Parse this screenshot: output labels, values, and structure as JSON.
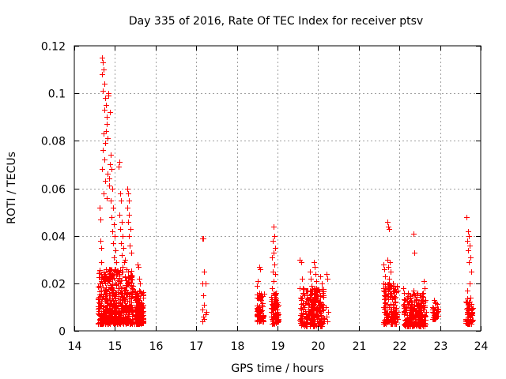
{
  "chart_data": {
    "type": "scatter",
    "title": "Day 335 of 2016, Rate Of TEC Index for receiver ptsv",
    "xlabel": "GPS time / hours",
    "ylabel": "ROTI / TECUs",
    "xlim": [
      14,
      24
    ],
    "ylim": [
      0,
      0.12
    ],
    "x_ticks": [
      "14",
      "15",
      "16",
      "17",
      "18",
      "19",
      "20",
      "21",
      "22",
      "23",
      "24"
    ],
    "y_ticks": [
      "0",
      "0.02",
      "0.04",
      "0.06",
      "0.08",
      "0.1",
      "0.12"
    ],
    "grid": true,
    "marker": "+",
    "color": "#ff0000",
    "series": [
      {
        "name": "ROTI",
        "points": [
          [
            14.62,
            0.052
          ],
          [
            14.64,
            0.047
          ],
          [
            14.65,
            0.038
          ],
          [
            14.66,
            0.035
          ],
          [
            14.67,
            0.029
          ],
          [
            14.62,
            0.025
          ],
          [
            14.64,
            0.02
          ],
          [
            14.66,
            0.017
          ],
          [
            14.68,
            0.115
          ],
          [
            14.7,
            0.113
          ],
          [
            14.72,
            0.11
          ],
          [
            14.69,
            0.108
          ],
          [
            14.73,
            0.104
          ],
          [
            14.71,
            0.101
          ],
          [
            14.75,
            0.098
          ],
          [
            14.77,
            0.095
          ],
          [
            14.74,
            0.093
          ],
          [
            14.79,
            0.09
          ],
          [
            14.8,
            0.087
          ],
          [
            14.78,
            0.084
          ],
          [
            14.72,
            0.083
          ],
          [
            14.82,
            0.081
          ],
          [
            14.76,
            0.079
          ],
          [
            14.7,
            0.076
          ],
          [
            14.74,
            0.072
          ],
          [
            14.68,
            0.068
          ],
          [
            14.82,
            0.066
          ],
          [
            14.75,
            0.063
          ],
          [
            14.85,
            0.061
          ],
          [
            14.72,
            0.058
          ],
          [
            14.8,
            0.056
          ],
          [
            14.84,
            0.1
          ],
          [
            14.83,
            0.099
          ],
          [
            14.88,
            0.092
          ],
          [
            14.9,
            0.074
          ],
          [
            14.88,
            0.07
          ],
          [
            14.92,
            0.068
          ],
          [
            14.86,
            0.064
          ],
          [
            14.94,
            0.06
          ],
          [
            14.9,
            0.055
          ],
          [
            14.96,
            0.052
          ],
          [
            14.92,
            0.048
          ],
          [
            14.98,
            0.045
          ],
          [
            14.94,
            0.042
          ],
          [
            15.0,
            0.04
          ],
          [
            14.96,
            0.037
          ],
          [
            15.02,
            0.034
          ],
          [
            14.98,
            0.031
          ],
          [
            15.04,
            0.029
          ],
          [
            15.0,
            0.026
          ],
          [
            15.06,
            0.024
          ],
          [
            15.1,
            0.071
          ],
          [
            15.08,
            0.069
          ],
          [
            15.12,
            0.058
          ],
          [
            15.14,
            0.055
          ],
          [
            15.1,
            0.049
          ],
          [
            15.16,
            0.046
          ],
          [
            15.12,
            0.043
          ],
          [
            15.18,
            0.04
          ],
          [
            15.14,
            0.037
          ],
          [
            15.2,
            0.035
          ],
          [
            15.16,
            0.032
          ],
          [
            15.22,
            0.029
          ],
          [
            15.18,
            0.027
          ],
          [
            15.3,
            0.06
          ],
          [
            15.32,
            0.058
          ],
          [
            15.34,
            0.055
          ],
          [
            15.3,
            0.052
          ],
          [
            15.35,
            0.049
          ],
          [
            15.32,
            0.046
          ],
          [
            15.38,
            0.043
          ],
          [
            15.34,
            0.04
          ],
          [
            15.36,
            0.036
          ],
          [
            15.4,
            0.033
          ],
          [
            15.25,
            0.03
          ],
          [
            15.28,
            0.026
          ],
          [
            15.38,
            0.022
          ],
          [
            15.55,
            0.028
          ],
          [
            15.58,
            0.027
          ],
          [
            15.6,
            0.022
          ],
          [
            15.62,
            0.02
          ],
          [
            15.65,
            0.016
          ],
          [
            15.57,
            0.013
          ],
          [
            15.62,
            0.01
          ],
          [
            15.66,
            0.006
          ],
          [
            15.55,
            0.005
          ],
          [
            15.6,
            0.008
          ],
          [
            15.64,
            0.012
          ],
          [
            17.15,
            0.039
          ],
          [
            17.18,
            0.039
          ],
          [
            17.2,
            0.025
          ],
          [
            17.16,
            0.02
          ],
          [
            17.22,
            0.02
          ],
          [
            17.18,
            0.015
          ],
          [
            17.2,
            0.011
          ],
          [
            17.16,
            0.009
          ],
          [
            17.22,
            0.007
          ],
          [
            17.18,
            0.006
          ],
          [
            17.2,
            0.005
          ],
          [
            17.16,
            0.004
          ],
          [
            17.24,
            0.008
          ],
          [
            18.5,
            0.019
          ],
          [
            18.55,
            0.027
          ],
          [
            18.58,
            0.026
          ],
          [
            18.52,
            0.021
          ],
          [
            18.56,
            0.016
          ],
          [
            18.6,
            0.013
          ],
          [
            18.54,
            0.01
          ],
          [
            18.58,
            0.008
          ],
          [
            18.52,
            0.006
          ],
          [
            18.6,
            0.005
          ],
          [
            18.56,
            0.004
          ],
          [
            18.62,
            0.011
          ],
          [
            18.5,
            0.009
          ],
          [
            18.9,
            0.044
          ],
          [
            18.92,
            0.04
          ],
          [
            18.88,
            0.038
          ],
          [
            18.94,
            0.035
          ],
          [
            18.9,
            0.033
          ],
          [
            18.86,
            0.031
          ],
          [
            18.92,
            0.028
          ],
          [
            18.88,
            0.025
          ],
          [
            18.94,
            0.024
          ],
          [
            18.9,
            0.021
          ],
          [
            18.86,
            0.018
          ],
          [
            18.92,
            0.015
          ],
          [
            18.96,
            0.013
          ],
          [
            18.88,
            0.011
          ],
          [
            18.94,
            0.009
          ],
          [
            18.9,
            0.007
          ],
          [
            18.86,
            0.005
          ],
          [
            18.96,
            0.004
          ],
          [
            19.0,
            0.006
          ],
          [
            18.84,
            0.008
          ],
          [
            19.55,
            0.03
          ],
          [
            19.58,
            0.029
          ],
          [
            19.6,
            0.022
          ],
          [
            19.62,
            0.018
          ],
          [
            19.56,
            0.014
          ],
          [
            19.64,
            0.011
          ],
          [
            19.58,
            0.009
          ],
          [
            19.62,
            0.007
          ],
          [
            19.56,
            0.005
          ],
          [
            19.66,
            0.004
          ],
          [
            19.7,
            0.017
          ],
          [
            19.72,
            0.014
          ],
          [
            19.74,
            0.012
          ],
          [
            19.76,
            0.009
          ],
          [
            19.78,
            0.007
          ],
          [
            19.74,
            0.005
          ],
          [
            19.7,
            0.003
          ],
          [
            19.8,
            0.025
          ],
          [
            19.82,
            0.022
          ],
          [
            19.84,
            0.019
          ],
          [
            19.86,
            0.016
          ],
          [
            19.8,
            0.013
          ],
          [
            19.88,
            0.011
          ],
          [
            19.84,
            0.008
          ],
          [
            19.9,
            0.029
          ],
          [
            19.92,
            0.027
          ],
          [
            19.94,
            0.024
          ],
          [
            19.96,
            0.021
          ],
          [
            19.92,
            0.018
          ],
          [
            19.98,
            0.015
          ],
          [
            19.94,
            0.012
          ],
          [
            19.9,
            0.009
          ],
          [
            19.96,
            0.006
          ],
          [
            19.92,
            0.004
          ],
          [
            20.0,
            0.003
          ],
          [
            20.05,
            0.023
          ],
          [
            20.08,
            0.02
          ],
          [
            20.1,
            0.016
          ],
          [
            20.05,
            0.012
          ],
          [
            20.12,
            0.009
          ],
          [
            20.2,
            0.024
          ],
          [
            20.22,
            0.022
          ],
          [
            20.18,
            0.01
          ],
          [
            20.24,
            0.008
          ],
          [
            20.2,
            0.006
          ],
          [
            20.22,
            0.004
          ],
          [
            21.6,
            0.028
          ],
          [
            21.62,
            0.026
          ],
          [
            21.64,
            0.023
          ],
          [
            21.6,
            0.02
          ],
          [
            21.66,
            0.018
          ],
          [
            21.62,
            0.015
          ],
          [
            21.64,
            0.012
          ],
          [
            21.6,
            0.01
          ],
          [
            21.66,
            0.007
          ],
          [
            21.7,
            0.046
          ],
          [
            21.72,
            0.044
          ],
          [
            21.74,
            0.043
          ],
          [
            21.7,
            0.03
          ],
          [
            21.76,
            0.029
          ],
          [
            21.72,
            0.027
          ],
          [
            21.78,
            0.025
          ],
          [
            21.74,
            0.022
          ],
          [
            21.8,
            0.019
          ],
          [
            21.76,
            0.016
          ],
          [
            21.82,
            0.014
          ],
          [
            21.78,
            0.011
          ],
          [
            21.84,
            0.009
          ],
          [
            21.8,
            0.007
          ],
          [
            21.86,
            0.005
          ],
          [
            21.82,
            0.003
          ],
          [
            21.88,
            0.017
          ],
          [
            21.9,
            0.012
          ],
          [
            21.92,
            0.008
          ],
          [
            22.1,
            0.018
          ],
          [
            22.12,
            0.016
          ],
          [
            22.14,
            0.013
          ],
          [
            22.1,
            0.011
          ],
          [
            22.16,
            0.009
          ],
          [
            22.12,
            0.007
          ],
          [
            22.18,
            0.005
          ],
          [
            22.14,
            0.003
          ],
          [
            22.2,
            0.014
          ],
          [
            22.22,
            0.012
          ],
          [
            22.24,
            0.01
          ],
          [
            22.26,
            0.008
          ],
          [
            22.22,
            0.006
          ],
          [
            22.35,
            0.041
          ],
          [
            22.37,
            0.033
          ],
          [
            22.35,
            0.017
          ],
          [
            22.38,
            0.015
          ],
          [
            22.4,
            0.013
          ],
          [
            22.36,
            0.011
          ],
          [
            22.42,
            0.009
          ],
          [
            22.38,
            0.007
          ],
          [
            22.44,
            0.005
          ],
          [
            22.4,
            0.004
          ],
          [
            22.46,
            0.012
          ],
          [
            22.5,
            0.015
          ],
          [
            22.52,
            0.013
          ],
          [
            22.54,
            0.011
          ],
          [
            22.5,
            0.009
          ],
          [
            22.56,
            0.007
          ],
          [
            22.52,
            0.005
          ],
          [
            22.58,
            0.004
          ],
          [
            22.6,
            0.021
          ],
          [
            22.62,
            0.018
          ],
          [
            22.58,
            0.016
          ],
          [
            22.64,
            0.013
          ],
          [
            22.6,
            0.01
          ],
          [
            22.66,
            0.008
          ],
          [
            22.85,
            0.013
          ],
          [
            22.88,
            0.012
          ],
          [
            22.9,
            0.01
          ],
          [
            22.86,
            0.009
          ],
          [
            22.92,
            0.008
          ],
          [
            22.88,
            0.007
          ],
          [
            22.9,
            0.006
          ],
          [
            22.86,
            0.005
          ],
          [
            23.65,
            0.048
          ],
          [
            23.68,
            0.042
          ],
          [
            23.7,
            0.04
          ],
          [
            23.66,
            0.038
          ],
          [
            23.72,
            0.036
          ],
          [
            23.68,
            0.034
          ],
          [
            23.74,
            0.031
          ],
          [
            23.7,
            0.029
          ],
          [
            23.76,
            0.025
          ],
          [
            23.72,
            0.02
          ],
          [
            23.66,
            0.017
          ],
          [
            23.74,
            0.014
          ],
          [
            23.68,
            0.011
          ],
          [
            23.76,
            0.009
          ],
          [
            23.7,
            0.007
          ],
          [
            23.64,
            0.005
          ],
          [
            23.78,
            0.004
          ],
          [
            23.72,
            0.003
          ],
          [
            23.66,
            0.008
          ]
        ],
        "dense_clusters": [
          {
            "x": [
              14.58,
              15.45
            ],
            "y": [
              0.003,
              0.026
            ],
            "count": 520
          },
          {
            "x": [
              15.48,
              15.7
            ],
            "y": [
              0.003,
              0.017
            ],
            "count": 150
          },
          {
            "x": [
              18.48,
              18.66
            ],
            "y": [
              0.004,
              0.016
            ],
            "count": 60
          },
          {
            "x": [
              18.84,
              19.02
            ],
            "y": [
              0.003,
              0.016
            ],
            "count": 70
          },
          {
            "x": [
              19.55,
              20.15
            ],
            "y": [
              0.002,
              0.018
            ],
            "count": 220
          },
          {
            "x": [
              21.6,
              21.95
            ],
            "y": [
              0.003,
              0.02
            ],
            "count": 150
          },
          {
            "x": [
              22.1,
              22.65
            ],
            "y": [
              0.002,
              0.016
            ],
            "count": 200
          },
          {
            "x": [
              22.82,
              22.95
            ],
            "y": [
              0.005,
              0.012
            ],
            "count": 40
          },
          {
            "x": [
              23.62,
              23.8
            ],
            "y": [
              0.003,
              0.014
            ],
            "count": 50
          }
        ]
      }
    ]
  }
}
